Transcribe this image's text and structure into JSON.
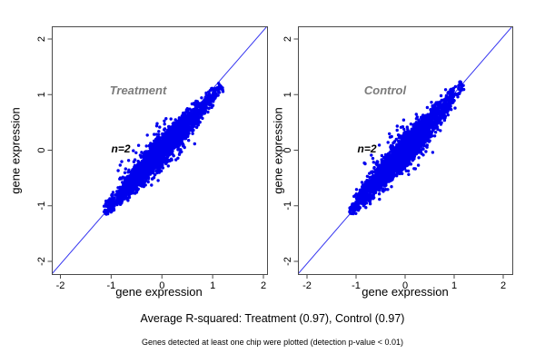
{
  "page": {
    "background": "#ffffff"
  },
  "colors": {
    "point": "#0000ee",
    "identity_line": "#3434f0",
    "frame": "#4a4a4a",
    "tick_text": "#000000",
    "panel_title": "#7b7b7b",
    "annotation": "#000000"
  },
  "captions": {
    "r_squared": "Average R-squared: Treatment (0.97), Control (0.97)",
    "footnote": "Genes detected at least one chip were plotted (detection p-value < 0.01)"
  },
  "chart_data": [
    {
      "type": "scatter",
      "panel": "Treatment",
      "annotation": "n=2",
      "xlabel": "gene expression",
      "ylabel": "gene expression",
      "xlim": [
        -2.2,
        2.2
      ],
      "ylim": [
        -2.2,
        2.2
      ],
      "x_ticks": [
        -2,
        -1,
        0,
        1,
        2
      ],
      "y_ticks": [
        -2,
        -1,
        0,
        1,
        2
      ],
      "identity_line": true,
      "r_squared": 0.97,
      "cloud": {
        "seed": 42,
        "n": 2400,
        "center": -0.05,
        "along_sd": 0.55,
        "t_min": -1.13,
        "t_max": 1.16,
        "w_min": 0.03,
        "w_max": 0.1,
        "outliers_above": 26,
        "out_up_t": [
          -0.65,
          0.35
        ],
        "out_up_p": [
          0.12,
          0.42
        ],
        "outliers_below": 12,
        "out_dn_t": [
          -0.35,
          0.5
        ],
        "out_dn_p": [
          0.12,
          0.38
        ]
      }
    },
    {
      "type": "scatter",
      "panel": "Control",
      "annotation": "n=2",
      "xlabel": "gene expression",
      "ylabel": "gene expression",
      "xlim": [
        -2.2,
        2.2
      ],
      "ylim": [
        -2.2,
        2.2
      ],
      "x_ticks": [
        -2,
        -1,
        0,
        1,
        2
      ],
      "y_ticks": [
        -2,
        -1,
        0,
        1,
        2
      ],
      "identity_line": true,
      "r_squared": 0.97,
      "cloud": {
        "seed": 1337,
        "n": 2600,
        "center": -0.05,
        "along_sd": 0.55,
        "t_min": -1.13,
        "t_max": 1.18,
        "w_min": 0.03,
        "w_max": 0.11,
        "outliers_above": 24,
        "out_up_t": [
          -0.75,
          0.3
        ],
        "out_up_p": [
          0.12,
          0.45
        ],
        "outliers_below": 14,
        "out_dn_t": [
          -0.3,
          0.45
        ],
        "out_dn_p": [
          0.12,
          0.4
        ]
      }
    }
  ]
}
